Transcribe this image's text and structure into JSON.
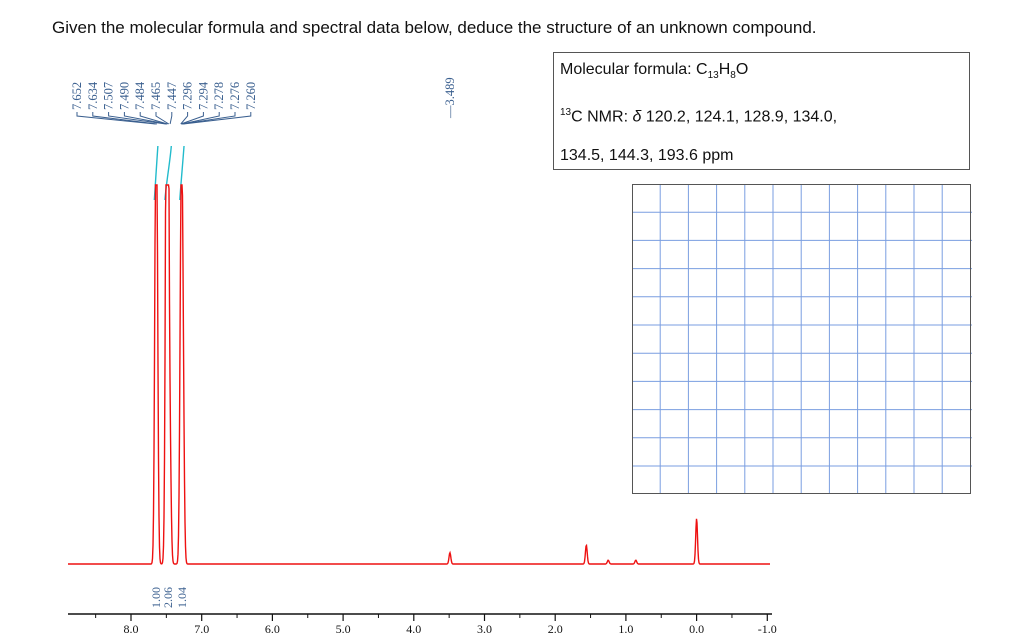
{
  "question": "Given the molecular formula and spectral data below, deduce the structure of an unknown compound.",
  "info": {
    "formula_label": "Molecular formula: ",
    "formula_C": "C",
    "formula_c_count": "13",
    "formula_H": "H",
    "formula_h_count": "8",
    "formula_O": "O",
    "nmr_isotope": "13",
    "nmr_label": "C NMR: ",
    "nmr_delta": "δ",
    "nmr_line1": " 120.2, 124.1, 128.9, 134.0,",
    "nmr_line2": "134.5, 144.3, 193.6 ppm"
  },
  "chart_data": {
    "type": "line",
    "xlabel": "",
    "xlim": [
      8.5,
      -1.0
    ],
    "x_ticks": [
      "8.0",
      "7.0",
      "6.0",
      "5.0",
      "4.0",
      "3.0",
      "2.0",
      "1.0",
      "0.0",
      "-1.0"
    ],
    "peak_labels": [
      "7.652",
      "7.634",
      "7.507",
      "7.490",
      "7.484",
      "7.465",
      "7.447",
      "7.296",
      "7.294",
      "7.278",
      "7.276",
      "7.260",
      "3.489"
    ],
    "integrals": [
      "1.00",
      "2.06",
      "1.04"
    ],
    "peaks": [
      {
        "ppm": 7.652,
        "height": 0.78
      },
      {
        "ppm": 7.634,
        "height": 0.76
      },
      {
        "ppm": 7.507,
        "height": 0.4
      },
      {
        "ppm": 7.49,
        "height": 0.95
      },
      {
        "ppm": 7.484,
        "height": 1.0
      },
      {
        "ppm": 7.465,
        "height": 0.25
      },
      {
        "ppm": 7.447,
        "height": 0.25
      },
      {
        "ppm": 7.296,
        "height": 0.6
      },
      {
        "ppm": 7.278,
        "height": 0.62
      },
      {
        "ppm": 7.26,
        "height": 0.3
      },
      {
        "ppm": 3.489,
        "height": 0.03
      },
      {
        "ppm": 1.56,
        "height": 0.05
      },
      {
        "ppm": 1.25,
        "height": 0.01
      },
      {
        "ppm": 0.86,
        "height": 0.01
      },
      {
        "ppm": 0.0,
        "height": 0.12
      }
    ],
    "colors": {
      "spectrum": "#ee1111",
      "labels": "#3a5f8f",
      "integral": "#22bbcc",
      "grid": "#6b8fd8"
    }
  }
}
